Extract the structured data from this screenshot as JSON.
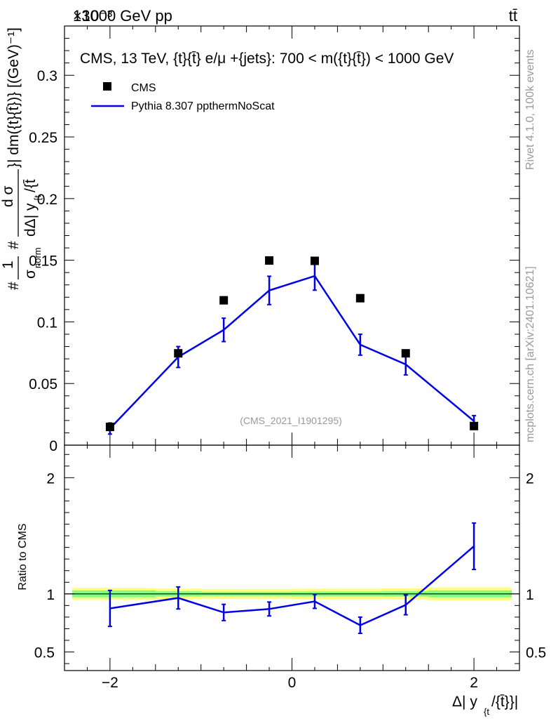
{
  "header": {
    "left_label": "13000 GeV pp",
    "right_label": "tt̄",
    "exponent_label": "×10⁻³"
  },
  "side_labels": {
    "rivet": "Rivet 4.1.0,  100k events",
    "mcplots": "mcplots.cern.ch [arXiv:2401.10621]"
  },
  "chart_data": [
    {
      "type": "scatter",
      "panel": "main",
      "title": "CMS, 13 TeV, {t}{t̄} e/μ +{jets}: 700 < m({t}{t̄}) < 1000 GeV",
      "watermark": "(CMS_2021_I1901295)",
      "ylabel": "#1/σ_norm #d σ/dΔ| y_{t}/{t̄}| dm({t}{t̄}) [(GeV)⁻¹]",
      "ylabel_parts": {
        "prefix": "#",
        "one": "1",
        "sigma": "σ",
        "norm": "norm",
        "hash": "#",
        "dsigma": "d σ",
        "d_delta_y": "dΔ| y",
        "sub_t": "{t",
        "slash_t": "/{t̄",
        "suffix": "}| dm({t}{t̄})} [(GeV)⁻¹]"
      },
      "xlabel": "Δ| y_{t}/{t̄}|",
      "xlabel_parts": {
        "main": "Δ| y",
        "sub": "{t",
        "tail": "/{t̄}}|"
      },
      "xlim": [
        -2.5,
        2.5
      ],
      "ylim": [
        0,
        0.34
      ],
      "yticks": [
        0,
        0.05,
        0.1,
        0.15,
        0.2,
        0.25,
        0.3
      ],
      "ytick_labels": [
        "0",
        "0.05",
        "0.1",
        "0.15",
        "0.2",
        "0.25",
        "0.3"
      ],
      "legend_position": "top-left",
      "series": [
        {
          "name": "CMS",
          "marker": "square",
          "color": "#000000",
          "x": [
            -2.0,
            -1.25,
            -0.75,
            -0.25,
            0.25,
            0.75,
            1.25,
            2.0
          ],
          "y": [
            0.0148,
            0.0745,
            0.1175,
            0.1498,
            0.1495,
            0.1192,
            0.0745,
            0.0155
          ]
        },
        {
          "name": "Pythia 8.307 ppthermNoScat",
          "marker": "line",
          "color": "#0000e6",
          "x": [
            -2.0,
            -1.25,
            -0.75,
            -0.25,
            0.25,
            0.75,
            1.25,
            2.0
          ],
          "y": [
            0.0135,
            0.0715,
            0.0935,
            0.1255,
            0.1372,
            0.0815,
            0.0655,
            0.0195
          ],
          "yerr": [
            0.0045,
            0.0085,
            0.0095,
            0.0115,
            0.0115,
            0.0085,
            0.0085,
            0.0045
          ]
        }
      ]
    },
    {
      "type": "scatter",
      "panel": "ratio",
      "ylabel": "Ratio to CMS",
      "xlim": [
        -2.5,
        2.5
      ],
      "ylim": [
        0.34,
        2.28
      ],
      "yticks": [
        0.5,
        1,
        2
      ],
      "ytick_labels": [
        "0.5",
        "1",
        "2"
      ],
      "xticks": [
        -2,
        0,
        2
      ],
      "xtick_labels": [
        "−2",
        "0",
        "2"
      ],
      "reference_line": 1,
      "uncertainty_bands": [
        {
          "name": "yellow",
          "color": "#ffff80",
          "x_edges": [
            -2.5,
            -1.5,
            -1.0,
            -0.5,
            0.0,
            0.5,
            1.0,
            1.5,
            2.5
          ],
          "half_width": [
            0.052,
            0.045,
            0.042,
            0.042,
            0.045,
            0.045,
            0.048,
            0.055
          ]
        },
        {
          "name": "green",
          "color": "#80ff80",
          "x_edges": [
            -2.5,
            -1.5,
            -1.0,
            -0.5,
            0.0,
            0.5,
            1.0,
            1.5,
            2.5
          ],
          "half_width": [
            0.03,
            0.022,
            0.018,
            0.018,
            0.02,
            0.02,
            0.022,
            0.03
          ]
        }
      ],
      "series": [
        {
          "name": "Pythia 8.307 ppthermNoScat",
          "color": "#0000e6",
          "x": [
            -2.0,
            -1.25,
            -0.75,
            -0.25,
            0.25,
            0.75,
            1.25,
            2.0
          ],
          "y": [
            0.875,
            0.965,
            0.84,
            0.87,
            0.935,
            0.73,
            0.905,
            1.41
          ],
          "yerr": [
            0.155,
            0.095,
            0.07,
            0.06,
            0.06,
            0.07,
            0.085,
            0.2
          ]
        }
      ]
    }
  ]
}
